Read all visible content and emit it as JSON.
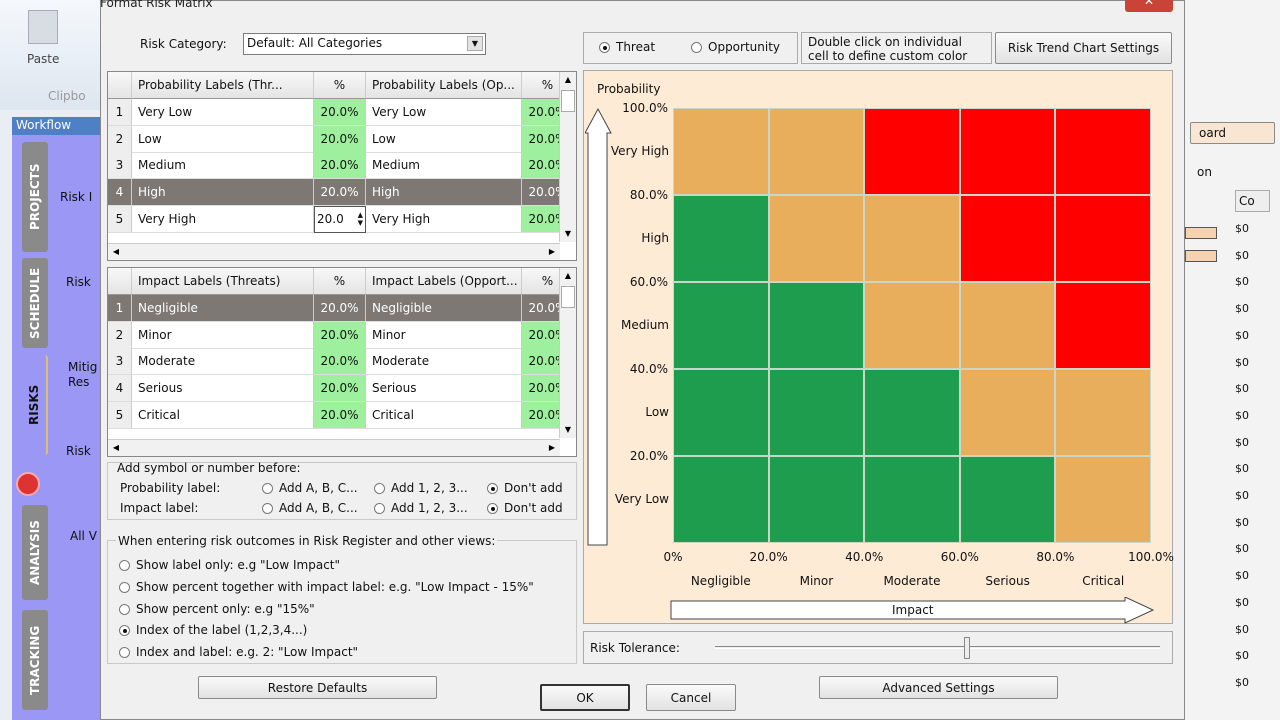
{
  "background_app": {
    "ribbon": {
      "paste_label": "Paste",
      "group_label": "Clipbo"
    },
    "workflow": {
      "title": "Workflow",
      "tabs": [
        "PROJECTS",
        "SCHEDULE",
        "RISKS",
        "ANALYSIS",
        "TRACKING"
      ],
      "active_tab": "RISKS",
      "items": [
        "Risk I",
        "Risk",
        "Mitig Res",
        "Risk",
        "All V"
      ]
    },
    "right_panel": {
      "button_partial": "oard",
      "label_partial": "on",
      "column_header": "Co",
      "values": [
        "$0",
        "$0",
        "$0",
        "$0",
        "$0",
        "$0",
        "$0",
        "$0",
        "$0",
        "$0",
        "$0",
        "$0",
        "$0",
        "$0",
        "$0",
        "$0",
        "$0",
        "$0"
      ]
    }
  },
  "dialog": {
    "title": "Format Risk Matrix",
    "risk_category": {
      "label": "Risk Category:",
      "value": "Default: All Categories"
    },
    "probability_grid": {
      "headers": [
        "Probability Labels (Thr...",
        "%",
        "Probability Labels (Op...",
        "%"
      ],
      "rows": [
        [
          "1",
          "Very Low",
          "20.0%",
          "Very Low",
          "20.0%"
        ],
        [
          "2",
          "Low",
          "20.0%",
          "Low",
          "20.0%"
        ],
        [
          "3",
          "Medium",
          "20.0%",
          "Medium",
          "20.0%"
        ],
        [
          "4",
          "High",
          "20.0%",
          "High",
          "20.0%"
        ],
        [
          "5",
          "Very High",
          "20.0",
          "Very High",
          "20.0%"
        ]
      ],
      "selected_row": 4,
      "editing_value": "20.0"
    },
    "impact_grid": {
      "headers": [
        "Impact Labels (Threats)",
        "%",
        "Impact Labels (Opport...",
        "%"
      ],
      "rows": [
        [
          "1",
          "Negligible",
          "20.0%",
          "Negligible",
          "20.0%"
        ],
        [
          "2",
          "Minor",
          "20.0%",
          "Minor",
          "20.0%"
        ],
        [
          "3",
          "Moderate",
          "20.0%",
          "Moderate",
          "20.0%"
        ],
        [
          "4",
          "Serious",
          "20.0%",
          "Serious",
          "20.0%"
        ],
        [
          "5",
          "Critical",
          "20.0%",
          "Critical",
          "20.0%"
        ]
      ],
      "selected_row": 1
    },
    "prefix": {
      "title": "Add symbol or number before:",
      "probability_label": "Probability label:",
      "impact_label": "Impact label:",
      "options": [
        "Add A, B, C...",
        "Add 1, 2, 3...",
        "Don't add"
      ],
      "probability_selected": "Don't add",
      "impact_selected": "Don't add"
    },
    "outcomes": {
      "title": "When entering risk outcomes in Risk Register and other views:",
      "options": [
        "Show label only: e.g \"Low Impact\"",
        "Show percent together with impact label: e.g. \"Low Impact - 15%\"",
        "Show percent only: e.g \"15%\"",
        "Index of the label (1,2,3,4...)",
        "Index and label: e.g. 2: \"Low Impact\""
      ],
      "selected": 3
    },
    "mode": {
      "options": [
        "Threat",
        "Opportunity"
      ],
      "selected": "Threat"
    },
    "hint": "Double click on individual cell to define custom color",
    "trend_button": "Risk Trend Chart Settings",
    "risk_tolerance": {
      "label": "Risk Tolerance:",
      "value": 0.42
    },
    "buttons": {
      "restore": "Restore Defaults",
      "ok": "OK",
      "cancel": "Cancel",
      "advanced": "Advanced Settings"
    },
    "colors": {
      "green": "#1f9d4e",
      "orange": "#e8ae5c",
      "red": "#ff0000",
      "background": "#fdebd5"
    }
  },
  "chart_data": {
    "type": "heatmap",
    "ylabel": "Probability",
    "xlabel": "Impact",
    "y_ticks": [
      "0%",
      "20.0%",
      "40.0%",
      "60.0%",
      "80.0%",
      "100.0%"
    ],
    "x_ticks": [
      "0%",
      "20.0%",
      "40.0%",
      "60.0%",
      "80.0%",
      "100.0%"
    ],
    "y_categories": [
      "Very Low",
      "Low",
      "Medium",
      "High",
      "Very High"
    ],
    "x_categories": [
      "Negligible",
      "Minor",
      "Moderate",
      "Serious",
      "Critical"
    ],
    "cells": [
      [
        "green",
        "green",
        "green",
        "green",
        "orange"
      ],
      [
        "green",
        "green",
        "green",
        "orange",
        "orange"
      ],
      [
        "green",
        "green",
        "orange",
        "orange",
        "red"
      ],
      [
        "green",
        "orange",
        "orange",
        "red",
        "red"
      ],
      [
        "orange",
        "orange",
        "red",
        "red",
        "red"
      ]
    ]
  }
}
